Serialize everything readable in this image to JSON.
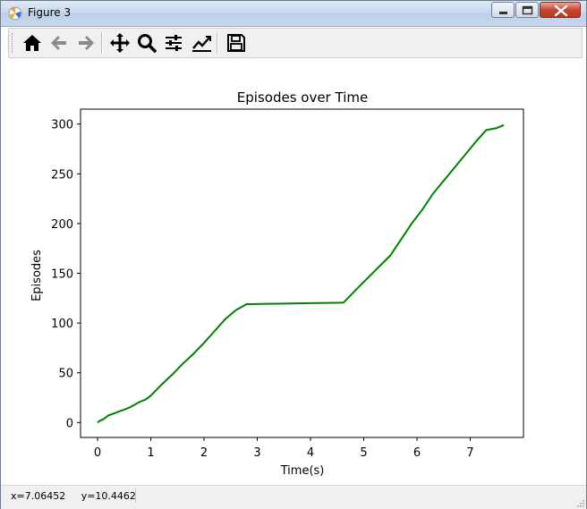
{
  "window": {
    "title": "Figure 3"
  },
  "toolbar": {
    "buttons": [
      {
        "name": "home",
        "icon": "home-icon"
      },
      {
        "name": "back",
        "icon": "arrow-left-icon"
      },
      {
        "name": "forward",
        "icon": "arrow-right-icon"
      },
      {
        "name": "pan",
        "icon": "move-icon"
      },
      {
        "name": "zoom",
        "icon": "magnifier-icon"
      },
      {
        "name": "configure-subplots",
        "icon": "sliders-icon"
      },
      {
        "name": "edit-axes",
        "icon": "line-chart-icon"
      },
      {
        "name": "save",
        "icon": "floppy-disk-icon"
      }
    ]
  },
  "status": {
    "coords": "x=7.06452     y=10.4462"
  },
  "chart_data": {
    "type": "line",
    "title": "Episodes over Time",
    "xlabel": "Time(s)",
    "ylabel": "Episodes",
    "xlim": [
      -0.32,
      8.0
    ],
    "ylim": [
      -15,
      315
    ],
    "xticks": [
      0,
      1,
      2,
      3,
      4,
      5,
      6,
      7
    ],
    "yticks": [
      0,
      50,
      100,
      150,
      200,
      250,
      300
    ],
    "grid": false,
    "line_color": "#008000",
    "series": [
      {
        "x": [
          0.0,
          0.05,
          0.1,
          0.15,
          0.2,
          0.3,
          0.4,
          0.5,
          0.6,
          0.7,
          0.8,
          0.9,
          1.0,
          1.2,
          1.4,
          1.6,
          1.8,
          2.0,
          2.2,
          2.4,
          2.6,
          2.8,
          3.5,
          4.0,
          4.62,
          4.9,
          5.2,
          5.5,
          5.7,
          5.9,
          6.1,
          6.3,
          6.5,
          6.7,
          6.9,
          7.1,
          7.3,
          7.5,
          7.63
        ],
        "y": [
          0,
          2,
          3,
          5,
          7,
          9,
          11,
          13,
          15,
          18,
          21,
          23,
          27,
          38,
          48,
          59,
          69,
          80,
          92,
          104,
          113,
          119,
          119.5,
          120,
          120.5,
          136,
          152,
          168,
          184,
          200,
          214,
          230,
          243,
          256,
          269,
          282,
          294,
          296,
          299
        ]
      }
    ]
  }
}
